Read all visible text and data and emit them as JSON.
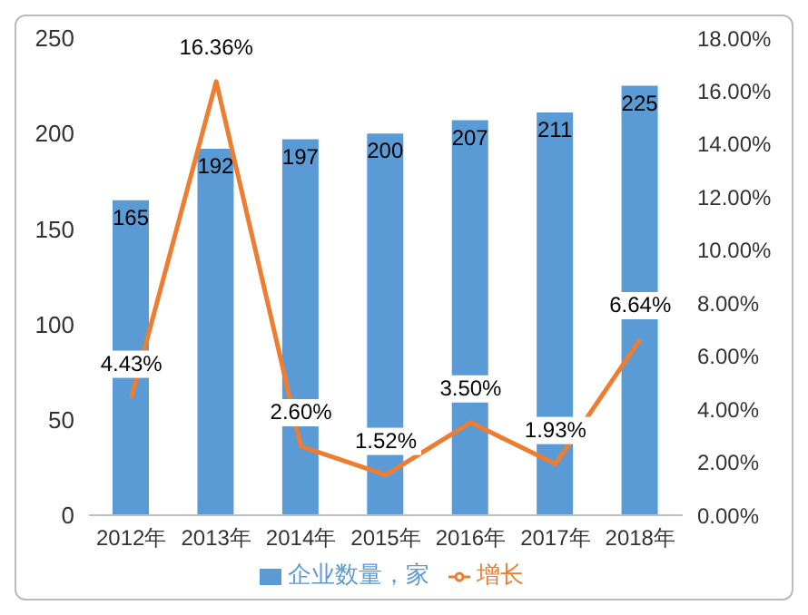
{
  "chart_data": {
    "type": "bar",
    "categories": [
      "2012年",
      "2013年",
      "2014年",
      "2015年",
      "2016年",
      "2017年",
      "2018年"
    ],
    "series": [
      {
        "name": "企业数量，家",
        "color": "#5b9bd5",
        "values": [
          165,
          192,
          197,
          200,
          207,
          211,
          225
        ],
        "value_labels": [
          "165",
          "192",
          "197",
          "200",
          "207",
          "211",
          "225"
        ]
      },
      {
        "name": "增长",
        "type": "line",
        "axis": "y2",
        "color": "#ed7d31",
        "values": [
          4.43,
          16.36,
          2.6,
          1.52,
          3.5,
          1.93,
          6.64
        ],
        "value_labels": [
          "4.43%",
          "16.36%",
          "2.60%",
          "1.52%",
          "3.50%",
          "1.93%",
          "6.64%"
        ]
      }
    ],
    "ylim": [
      0,
      250
    ],
    "yticks": [
      0,
      50,
      100,
      150,
      200,
      250
    ],
    "y2lim": [
      0,
      18
    ],
    "y2ticks": [
      {
        "value": 0,
        "label": "0.00%"
      },
      {
        "value": 2,
        "label": "2.00%"
      },
      {
        "value": 4,
        "label": "4.00%"
      },
      {
        "value": 6,
        "label": "6.00%"
      },
      {
        "value": 8,
        "label": "8.00%"
      },
      {
        "value": 10,
        "label": "10.00%"
      },
      {
        "value": 12,
        "label": "12.00%"
      },
      {
        "value": 14,
        "label": "14.00%"
      },
      {
        "value": 16,
        "label": "16.00%"
      },
      {
        "value": 18,
        "label": "18.00%"
      }
    ],
    "legend": "bottom",
    "marker": "none",
    "line_style": "solid",
    "grid": false
  }
}
